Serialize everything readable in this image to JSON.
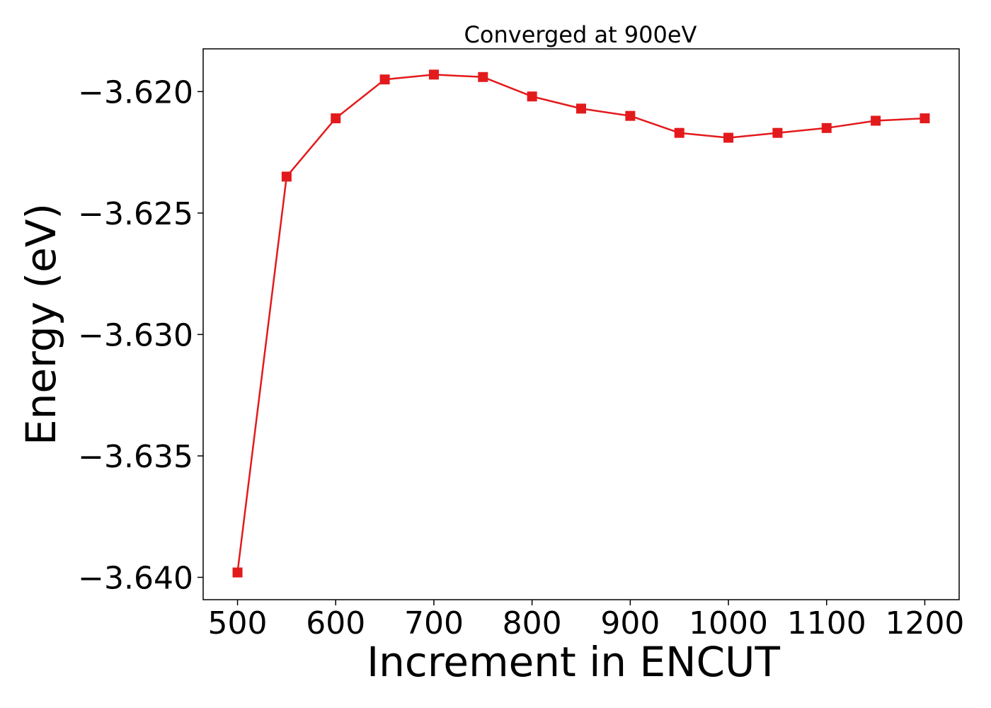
{
  "chart_data": {
    "type": "line",
    "title": "Converged at 900eV",
    "xlabel": "Increment in ENCUT",
    "ylabel": "Energy (eV)",
    "x": [
      500,
      550,
      600,
      650,
      700,
      750,
      800,
      850,
      900,
      950,
      1000,
      1050,
      1100,
      1150,
      1200
    ],
    "series": [
      {
        "values": [
          -3.6398,
          -3.6235,
          -3.6211,
          -3.6195,
          -3.6193,
          -3.6194,
          -3.6202,
          -3.6207,
          -3.621,
          -3.6217,
          -3.6219,
          -3.6217,
          -3.6215,
          -3.6212,
          -3.6211
        ],
        "color": "#e31a1c",
        "marker": "square"
      }
    ],
    "xlim": [
      465,
      1235
    ],
    "ylim": [
      -3.64092,
      -3.61824
    ],
    "xticks": [
      500,
      600,
      700,
      800,
      900,
      1000,
      1100,
      1200
    ],
    "xtick_labels": [
      "500",
      "600",
      "700",
      "800",
      "900",
      "1000",
      "1100",
      "1200"
    ],
    "yticks": [
      -3.62,
      -3.625,
      -3.63,
      -3.635,
      -3.64
    ],
    "ytick_labels": [
      "−3.620",
      "−3.625",
      "−3.630",
      "−3.635",
      "−3.640"
    ],
    "grid": false,
    "legend": "none"
  }
}
